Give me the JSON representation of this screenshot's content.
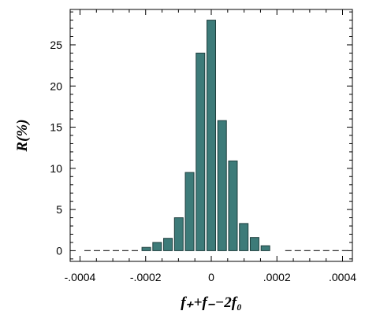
{
  "chart_data": {
    "type": "bar",
    "xlabel": "f₊+f₋−2f₀",
    "ylabel": "R(%)",
    "xlim": [
      -0.00043,
      0.00043
    ],
    "ylim": [
      -1.3,
      29.3
    ],
    "bar_color": "#3d7b79",
    "bar_edge_color": "#1f3f3e",
    "bin_width": 3.3e-05,
    "x": [
      -0.000198,
      -0.000165,
      -0.000132,
      -9.9e-05,
      -6.6e-05,
      -3.3e-05,
      0,
      3.3e-05,
      6.6e-05,
      9.9e-05,
      0.000132,
      0.000165
    ],
    "values": [
      0.4,
      1.0,
      1.5,
      4.0,
      9.5,
      24.0,
      28.0,
      15.8,
      10.9,
      3.3,
      1.6,
      0.6
    ],
    "zero_line_segments": [
      [
        -0.00043,
        -0.000215
      ],
      [
        0.000182,
        0.00043
      ]
    ],
    "x_ticks": [
      {
        "value": -0.0004,
        "label": "-.0004"
      },
      {
        "value": -0.0002,
        "label": "-.0002"
      },
      {
        "value": 0,
        "label": "0"
      },
      {
        "value": 0.0002,
        "label": ".0002"
      },
      {
        "value": 0.0004,
        "label": ".0004"
      }
    ],
    "y_ticks": [
      {
        "value": 0,
        "label": "0"
      },
      {
        "value": 5,
        "label": "5"
      },
      {
        "value": 10,
        "label": "10"
      },
      {
        "value": 15,
        "label": "15"
      },
      {
        "value": 20,
        "label": "20"
      },
      {
        "value": 25,
        "label": "25"
      }
    ],
    "x_minor_step": 5e-05,
    "y_minor_step": 1,
    "grid": false,
    "legend": "none"
  }
}
